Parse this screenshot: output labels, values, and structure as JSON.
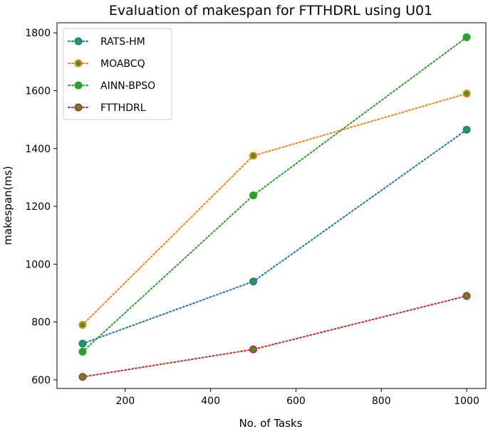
{
  "chart_data": {
    "type": "line",
    "title": "Evaluation of makespan for FTTHDRL using U01",
    "xlabel": "No. of Tasks",
    "ylabel": "makespan(ms)",
    "x": [
      100,
      500,
      1000
    ],
    "xlim": [
      40,
      1045
    ],
    "ylim": [
      570,
      1835
    ],
    "xticks": [
      200,
      400,
      600,
      800,
      1000
    ],
    "yticks": [
      600,
      800,
      1000,
      1200,
      1400,
      1600,
      1800
    ],
    "grid": false,
    "legend": "top-left",
    "series": [
      {
        "name": "RATS-HM",
        "values": [
          725,
          940,
          1465
        ],
        "line_color": "#1f77b4",
        "edge_color": "#1f77b4",
        "face_color": "#2ca02c"
      },
      {
        "name": "MOABCQ",
        "values": [
          790,
          1375,
          1590
        ],
        "line_color": "#ff7f0e",
        "edge_color": "#ff7f0e",
        "face_color": "#2ca02c"
      },
      {
        "name": "AINN-BPSO",
        "values": [
          697,
          1238,
          1785
        ],
        "line_color": "#2ca02c",
        "edge_color": "#2ca02c",
        "face_color": "#2ca02c"
      },
      {
        "name": "FTTHDRL",
        "values": [
          610,
          705,
          890
        ],
        "line_color": "#d62728",
        "edge_color": "#d62728",
        "face_color": "#2ca02c"
      }
    ]
  }
}
